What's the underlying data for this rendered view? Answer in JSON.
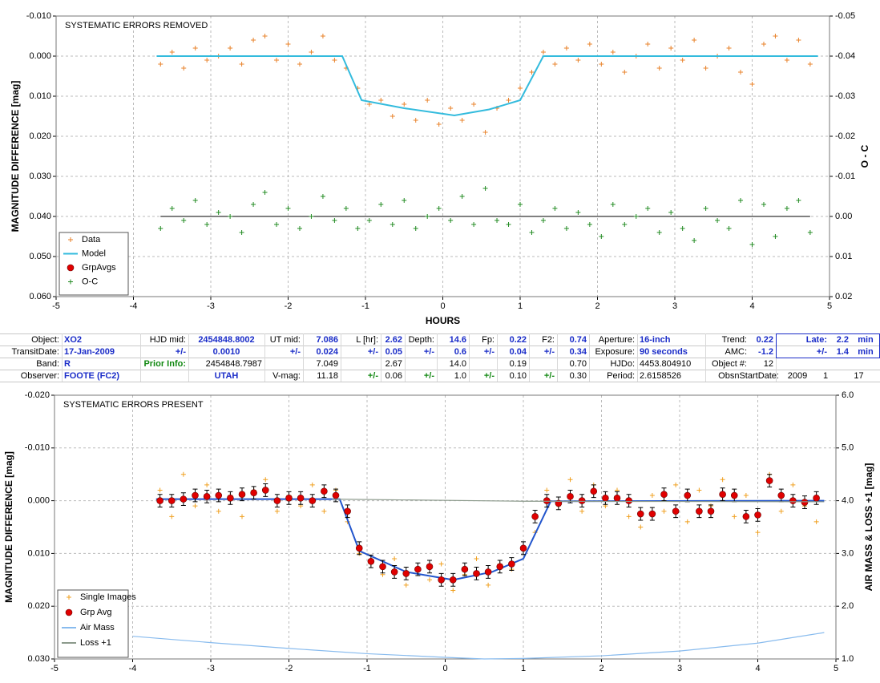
{
  "chart_data": [
    {
      "type": "scatter",
      "title": "SYSTEMATIC ERRORS REMOVED",
      "xlabel": "HOURS",
      "ylabel": "MAGNITUDE DIFFERENCE [mag]",
      "y2label": "O - C",
      "xlim": [
        -5,
        5
      ],
      "xticks": [
        -5,
        -4,
        -3,
        -2,
        -1,
        0,
        1,
        2,
        3,
        4,
        5
      ],
      "ylim": [
        0.06,
        -0.01
      ],
      "yticks": [
        {
          "value": -0.01,
          "label": "-0.010"
        },
        {
          "value": 0.0,
          "label": "0.000"
        },
        {
          "value": 0.01,
          "label": "0.010"
        },
        {
          "value": 0.02,
          "label": "0.020"
        },
        {
          "value": 0.03,
          "label": "0.030"
        },
        {
          "value": 0.04,
          "label": "0.040"
        },
        {
          "value": 0.05,
          "label": "0.050"
        },
        {
          "value": 0.06,
          "label": "0.060"
        }
      ],
      "y2lim": [
        0.02,
        -0.05
      ],
      "y2ticks": [
        {
          "value": -0.05,
          "label": "-0.05"
        },
        {
          "value": -0.04,
          "label": "-0.04"
        },
        {
          "value": -0.03,
          "label": "-0.03"
        },
        {
          "value": -0.02,
          "label": "-0.02"
        },
        {
          "value": -0.01,
          "label": "-0.01"
        },
        {
          "value": 0.0,
          "label": "0.00"
        },
        {
          "value": 0.01,
          "label": "0.01"
        },
        {
          "value": 0.02,
          "label": "0.02"
        }
      ],
      "grid": true,
      "legend": "lower left",
      "series": [
        {
          "name": "Data",
          "marker": "plus",
          "color": "#e8822a",
          "x": [
            -3.65,
            -3.5,
            -3.35,
            -3.2,
            -3.05,
            -2.9,
            -2.75,
            -2.6,
            -2.45,
            -2.3,
            -2.15,
            -2.0,
            -1.85,
            -1.7,
            -1.55,
            -1.4,
            -1.25,
            -1.1,
            -0.95,
            -0.8,
            -0.65,
            -0.5,
            -0.35,
            -0.2,
            -0.05,
            0.1,
            0.25,
            0.4,
            0.55,
            0.7,
            0.85,
            1.0,
            1.15,
            1.3,
            1.45,
            1.6,
            1.75,
            1.9,
            2.05,
            2.2,
            2.35,
            2.5,
            2.65,
            2.8,
            2.95,
            3.1,
            3.25,
            3.4,
            3.55,
            3.7,
            3.85,
            4.0,
            4.15,
            4.3,
            4.45,
            4.6,
            4.75
          ],
          "values": [
            0.002,
            -0.001,
            0.003,
            -0.002,
            0.001,
            0.0,
            -0.002,
            0.002,
            -0.004,
            -0.005,
            0.001,
            -0.003,
            0.002,
            -0.001,
            -0.005,
            0.001,
            0.003,
            0.008,
            0.012,
            0.011,
            0.015,
            0.012,
            0.016,
            0.011,
            0.017,
            0.013,
            0.016,
            0.012,
            0.019,
            0.013,
            0.011,
            0.008,
            0.004,
            -0.001,
            0.002,
            -0.002,
            0.001,
            -0.003,
            0.002,
            -0.001,
            0.004,
            0.0,
            -0.003,
            0.003,
            -0.002,
            0.001,
            -0.004,
            0.003,
            0.0,
            -0.002,
            0.004,
            0.007,
            -0.003,
            -0.005,
            0.001,
            -0.004,
            0.002
          ]
        },
        {
          "name": "Model",
          "marker": "line",
          "color": "#33bbdd",
          "x": [
            -3.7,
            -1.3,
            -1.05,
            -0.5,
            0.15,
            0.6,
            1.0,
            1.3,
            4.85
          ],
          "values": [
            0.0,
            0.0,
            0.011,
            0.013,
            0.0148,
            0.0133,
            0.011,
            0.0,
            0.0
          ]
        },
        {
          "name": "GrpAvgs",
          "marker": "circle",
          "color": "#e00000",
          "x": [],
          "values": []
        },
        {
          "name": "O-C",
          "marker": "plus",
          "color": "#228b22",
          "axis": "y2",
          "zero_line": true,
          "x": [
            -3.65,
            -3.5,
            -3.35,
            -3.2,
            -3.05,
            -2.9,
            -2.75,
            -2.6,
            -2.45,
            -2.3,
            -2.15,
            -2.0,
            -1.85,
            -1.7,
            -1.55,
            -1.4,
            -1.25,
            -1.1,
            -0.95,
            -0.8,
            -0.65,
            -0.5,
            -0.35,
            -0.2,
            -0.05,
            0.1,
            0.25,
            0.4,
            0.55,
            0.7,
            0.85,
            1.0,
            1.15,
            1.3,
            1.45,
            1.6,
            1.75,
            1.9,
            2.05,
            2.2,
            2.35,
            2.5,
            2.65,
            2.8,
            2.95,
            3.1,
            3.25,
            3.4,
            3.55,
            3.7,
            3.85,
            4.0,
            4.15,
            4.3,
            4.45,
            4.6,
            4.75
          ],
          "values": [
            0.003,
            -0.002,
            0.001,
            -0.004,
            0.002,
            -0.001,
            0.0,
            0.004,
            -0.003,
            -0.006,
            0.002,
            -0.002,
            0.003,
            0.0,
            -0.005,
            0.001,
            -0.002,
            0.003,
            0.001,
            -0.003,
            0.002,
            -0.004,
            0.003,
            0.0,
            -0.002,
            0.001,
            -0.005,
            0.002,
            -0.007,
            0.001,
            0.002,
            -0.003,
            0.004,
            0.001,
            -0.002,
            0.003,
            -0.001,
            0.002,
            0.005,
            -0.003,
            0.002,
            0.0,
            -0.002,
            0.004,
            -0.001,
            0.003,
            0.006,
            -0.002,
            0.001,
            0.003,
            -0.004,
            0.007,
            -0.003,
            0.005,
            -0.002,
            -0.004,
            0.004
          ]
        }
      ]
    },
    {
      "type": "scatter",
      "title": "SYSTEMATIC ERRORS PRESENT",
      "ylabel": "MAGNITUDE DIFFERENCE [mag]",
      "y2label": "AIR MASS & LOSS +1 [mag]",
      "xlim": [
        -5,
        5
      ],
      "xticks": [
        -5,
        -4,
        -3,
        -2,
        -1,
        0,
        1,
        2,
        3,
        4,
        5
      ],
      "ylim": [
        0.03,
        -0.02
      ],
      "yticks": [
        {
          "value": -0.02,
          "label": "-0.020"
        },
        {
          "value": -0.01,
          "label": "-0.010"
        },
        {
          "value": 0.0,
          "label": "0.000"
        },
        {
          "value": 0.01,
          "label": "0.010"
        },
        {
          "value": 0.02,
          "label": "0.020"
        },
        {
          "value": 0.03,
          "label": "0.030"
        }
      ],
      "y2lim": [
        1.0,
        6.0
      ],
      "y2ticks": [
        {
          "value": 1.0,
          "label": "1.0"
        },
        {
          "value": 2.0,
          "label": "2.0"
        },
        {
          "value": 3.0,
          "label": "3.0"
        },
        {
          "value": 4.0,
          "label": "4.0"
        },
        {
          "value": 5.0,
          "label": "5.0"
        },
        {
          "value": 6.0,
          "label": "6.0"
        }
      ],
      "grid": true,
      "legend": "lower left",
      "series": [
        {
          "name": "Single Images",
          "marker": "plus",
          "color": "#f0a020",
          "x": [
            -3.65,
            -3.5,
            -3.35,
            -3.2,
            -3.05,
            -2.9,
            -2.75,
            -2.6,
            -2.45,
            -2.3,
            -2.15,
            -2.0,
            -1.85,
            -1.7,
            -1.55,
            -1.4,
            -1.25,
            -1.1,
            -0.95,
            -0.8,
            -0.65,
            -0.5,
            -0.35,
            -0.2,
            -0.05,
            0.1,
            0.25,
            0.4,
            0.55,
            0.7,
            0.85,
            1.0,
            1.15,
            1.3,
            1.45,
            1.6,
            1.75,
            1.9,
            2.05,
            2.2,
            2.35,
            2.5,
            2.65,
            2.8,
            2.95,
            3.1,
            3.25,
            3.4,
            3.55,
            3.7,
            3.85,
            4.0,
            4.15,
            4.3,
            4.45,
            4.6,
            4.75
          ],
          "values": [
            -0.002,
            0.003,
            -0.005,
            0.001,
            -0.003,
            0.002,
            -0.001,
            0.003,
            -0.002,
            -0.004,
            0.002,
            -0.001,
            0.001,
            -0.003,
            0.002,
            -0.002,
            0.004,
            0.01,
            0.012,
            0.014,
            0.011,
            0.016,
            0.013,
            0.015,
            0.012,
            0.017,
            0.014,
            0.011,
            0.016,
            0.012,
            0.013,
            0.009,
            0.006,
            -0.002,
            0.001,
            -0.004,
            0.002,
            -0.003,
            0.001,
            -0.002,
            0.003,
            0.005,
            -0.001,
            0.002,
            -0.003,
            0.004,
            -0.002,
            0.001,
            -0.004,
            0.003,
            -0.001,
            0.006,
            -0.005,
            0.002,
            -0.003,
            0.001,
            0.004
          ]
        },
        {
          "marker": "line",
          "color": "#2255cc",
          "x": [
            -3.7,
            -1.35,
            -1.1,
            -0.5,
            0.1,
            0.6,
            1.0,
            1.35,
            4.85
          ],
          "values": [
            -0.0003,
            -0.0003,
            0.0095,
            0.0135,
            0.015,
            0.0135,
            0.011,
            0.0001,
            0.0
          ]
        },
        {
          "name": "Grp Avg",
          "marker": "circle",
          "color": "#e00000",
          "x": [
            -3.65,
            -3.5,
            -3.35,
            -3.2,
            -3.05,
            -2.9,
            -2.75,
            -2.6,
            -2.45,
            -2.3,
            -2.15,
            -2.0,
            -1.85,
            -1.7,
            -1.55,
            -1.4,
            -1.25,
            -1.1,
            -0.95,
            -0.8,
            -0.65,
            -0.5,
            -0.35,
            -0.2,
            -0.05,
            0.1,
            0.25,
            0.4,
            0.55,
            0.7,
            0.85,
            1.0,
            1.15,
            1.3,
            1.45,
            1.6,
            1.75,
            1.9,
            2.05,
            2.2,
            2.35,
            2.5,
            2.65,
            2.8,
            2.95,
            3.1,
            3.25,
            3.4,
            3.55,
            3.7,
            3.85,
            4.0,
            4.15,
            4.3,
            4.45,
            4.6,
            4.75
          ],
          "values": [
            0.0,
            0.0,
            -0.0003,
            -0.001,
            -0.0008,
            -0.001,
            -0.0005,
            -0.0012,
            -0.0015,
            -0.002,
            0.0,
            -0.0005,
            -0.0005,
            0.0,
            -0.0018,
            -0.001,
            0.002,
            0.009,
            0.0115,
            0.0125,
            0.0135,
            0.0138,
            0.013,
            0.0125,
            0.015,
            0.015,
            0.013,
            0.0138,
            0.0135,
            0.0125,
            0.012,
            0.009,
            0.003,
            0.0,
            0.0005,
            -0.0008,
            0.0,
            -0.0018,
            -0.0005,
            -0.0005,
            0.0,
            0.0025,
            0.0025,
            -0.0012,
            0.002,
            -0.001,
            0.002,
            0.002,
            -0.0012,
            -0.001,
            0.003,
            0.0027,
            -0.0038,
            -0.001,
            0.0,
            0.0003,
            -0.0005
          ],
          "errors": [
            0.0012,
            0.0012,
            0.0012,
            0.0012,
            0.0012,
            0.0012,
            0.0012,
            0.0012,
            0.0012,
            0.0012,
            0.0012,
            0.0012,
            0.0012,
            0.0012,
            0.0012,
            0.0012,
            0.0012,
            0.0012,
            0.0012,
            0.0012,
            0.0012,
            0.0012,
            0.0012,
            0.0012,
            0.0012,
            0.0012,
            0.0012,
            0.0012,
            0.0012,
            0.0012,
            0.0012,
            0.0012,
            0.0012,
            0.0012,
            0.0012,
            0.0012,
            0.0012,
            0.0012,
            0.0012,
            0.0012,
            0.0012,
            0.0012,
            0.0012,
            0.0012,
            0.0012,
            0.0012,
            0.0012,
            0.0012,
            0.0012,
            0.0012,
            0.0012,
            0.0012,
            0.0012,
            0.0012,
            0.0012,
            0.0012,
            0.0012
          ]
        },
        {
          "name": "Air Mass",
          "marker": "line",
          "color": "#88bbee",
          "axis": "y2",
          "x": [
            -4,
            -3,
            -2,
            -1,
            0,
            0.5,
            1,
            2,
            3,
            4,
            4.85
          ],
          "values": [
            1.43,
            1.31,
            1.2,
            1.1,
            1.03,
            1.0,
            1.01,
            1.06,
            1.15,
            1.3,
            1.5
          ]
        },
        {
          "name": "Loss +1",
          "marker": "line",
          "color": "#8c9a8c",
          "axis": "y2",
          "x": [
            -1.45,
            1.0,
            4.85
          ],
          "values": [
            4.03,
            3.99,
            3.98
          ]
        }
      ]
    }
  ],
  "table": {
    "rows": [
      [
        "Object:",
        "XO2",
        "HJD mid:",
        "2454848.8002",
        "UT mid:",
        "7.086",
        "L [hr]:",
        "2.62",
        "Depth:",
        "14.6",
        "Fp:",
        "0.22",
        "F2:",
        "0.74",
        "Aperture:",
        "16-inch",
        "Trend:",
        "0.22",
        "Late:",
        "2.2",
        "min"
      ],
      [
        "TransitDate:",
        "17-Jan-2009",
        "+/-",
        "0.0010",
        "+/-",
        "0.024",
        "+/-",
        "0.05",
        "+/-",
        "0.6",
        "+/-",
        "0.04",
        "+/-",
        "0.34",
        "Exposure:",
        "90 seconds",
        "AMC:",
        "-1.2",
        "+/-",
        "1.4",
        "min"
      ],
      [
        "Band:",
        "R",
        "Prior Info:",
        "2454848.7987",
        "7.049",
        "2.67",
        "14.0",
        "0.19",
        "0.70",
        "HJDo:",
        "4453.804910",
        "Object #:",
        "12"
      ],
      [
        "Observer:",
        "FOOTE (FC2)",
        "UTAH",
        "V-mag:",
        "11.18",
        "+/-",
        "0.06",
        "+/-",
        "1.0",
        "+/-",
        "0.10",
        "+/-",
        "0.30",
        "Period:",
        "2.6158526",
        "ObsnStartDate:",
        "2009",
        "1",
        "17"
      ]
    ]
  }
}
